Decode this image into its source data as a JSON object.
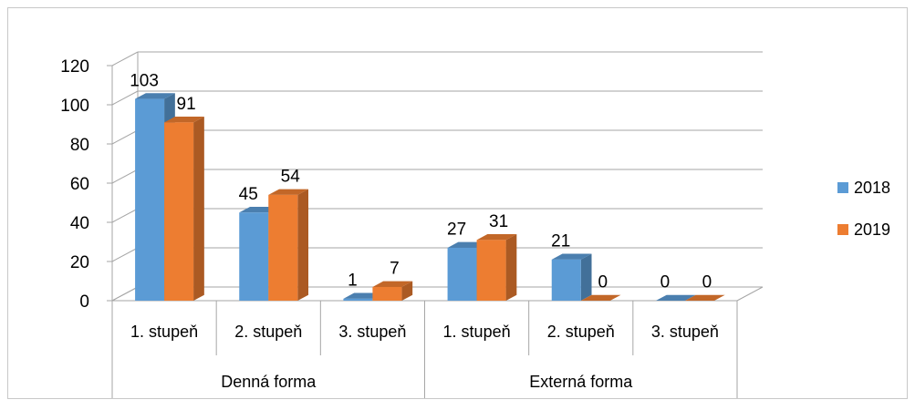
{
  "chart_data": {
    "type": "bar",
    "style": "3d-clustered-column",
    "categories": [
      "1. stupeň",
      "2. stupeň",
      "3. stupeň",
      "1. stupeň",
      "2. stupeň",
      "3. stupeň"
    ],
    "groups": [
      {
        "label": "Denná forma",
        "categories": [
          "1. stupeň",
          "2. stupeň",
          "3. stupeň"
        ]
      },
      {
        "label": "Externá forma",
        "categories": [
          "1. stupeň",
          "2. stupeň",
          "3. stupeň"
        ]
      }
    ],
    "series": [
      {
        "name": "2018",
        "color": "#5b9bd5",
        "values": [
          103,
          45,
          1,
          27,
          21,
          0
        ]
      },
      {
        "name": "2019",
        "color": "#ed7d31",
        "values": [
          91,
          54,
          7,
          31,
          0,
          0
        ]
      }
    ],
    "y_ticks": [
      "0",
      "20",
      "40",
      "60",
      "80",
      "100",
      "120"
    ],
    "ylim": [
      0,
      120
    ],
    "grid": true,
    "data_labels": true,
    "legend_position": "right"
  }
}
